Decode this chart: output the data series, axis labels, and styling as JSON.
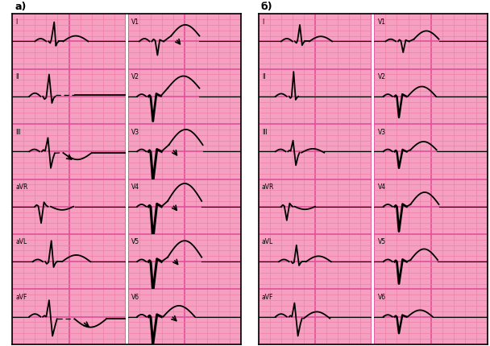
{
  "bg_color": "#FFFFFF",
  "panel_bg": "#F5A0C0",
  "grid_minor_color": "#F080A8",
  "grid_major_color": "#E0509A",
  "ecg_color": "#000000",
  "panel_a_label": "а)",
  "panel_b_label": "б)",
  "lead_labels_left": [
    "I",
    "II",
    "III",
    "aVR",
    "aVL",
    "aVF"
  ],
  "lead_labels_right": [
    "V1",
    "V2",
    "V3",
    "V4",
    "V5",
    "V6"
  ],
  "figsize": [
    6.08,
    4.3
  ],
  "dpi": 100
}
